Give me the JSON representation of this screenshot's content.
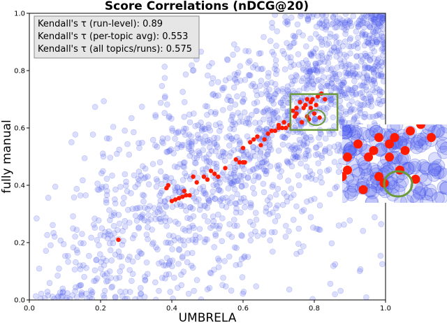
{
  "chart_data": {
    "type": "scatter",
    "title": "Score Correlations (nDCG@20)",
    "xlabel": "UMBRELA",
    "ylabel": "fully manual",
    "xlim": [
      0,
      1
    ],
    "ylim": [
      0,
      1
    ],
    "xticks": [
      "0.0",
      "0.2",
      "0.4",
      "0.6",
      "0.8",
      "1.0"
    ],
    "yticks": [
      "0.0",
      "0.2",
      "0.4",
      "0.6",
      "0.8",
      "1.0"
    ],
    "grid": false,
    "annotations": [
      "Kendall's τ (run-level): 0.89",
      "Kendall's τ (per-topic avg): 0.553",
      "Kendall's τ (all topics/runs): 0.575"
    ],
    "highlight_box": {
      "x": [
        0.733,
        0.865
      ],
      "y": [
        0.593,
        0.718
      ]
    },
    "highlight_circle": {
      "x": 0.805,
      "y": 0.636
    },
    "series": [
      {
        "color": "#ff1a00",
        "x": [
          0.25,
          0.385,
          0.39,
          0.4,
          0.41,
          0.42,
          0.43,
          0.435,
          0.44,
          0.45,
          0.46,
          0.47,
          0.49,
          0.5,
          0.51,
          0.52,
          0.53,
          0.55,
          0.58,
          0.59,
          0.6,
          0.6,
          0.605,
          0.62,
          0.63,
          0.64,
          0.65,
          0.66,
          0.67,
          0.68,
          0.69,
          0.7,
          0.7,
          0.71,
          0.715,
          0.72,
          0.73,
          0.74,
          0.745,
          0.75,
          0.75,
          0.76,
          0.765,
          0.77,
          0.775,
          0.78,
          0.78,
          0.785,
          0.79,
          0.79,
          0.795,
          0.8,
          0.805,
          0.81,
          0.815,
          0.82,
          0.83
        ],
        "y": [
          0.21,
          0.39,
          0.4,
          0.345,
          0.35,
          0.355,
          0.36,
          0.38,
          0.365,
          0.365,
          0.43,
          0.41,
          0.43,
          0.42,
          0.45,
          0.44,
          0.43,
          0.46,
          0.49,
          0.48,
          0.48,
          0.53,
          0.48,
          0.55,
          0.56,
          0.57,
          0.54,
          0.56,
          0.58,
          0.59,
          0.59,
          0.6,
          0.61,
          0.6,
          0.62,
          0.6,
          0.61,
          0.66,
          0.64,
          0.67,
          0.65,
          0.69,
          0.62,
          0.67,
          0.68,
          0.64,
          0.7,
          0.63,
          0.67,
          0.69,
          0.7,
          0.65,
          0.68,
          0.71,
          0.636,
          0.72,
          0.7
        ]
      }
    ]
  }
}
